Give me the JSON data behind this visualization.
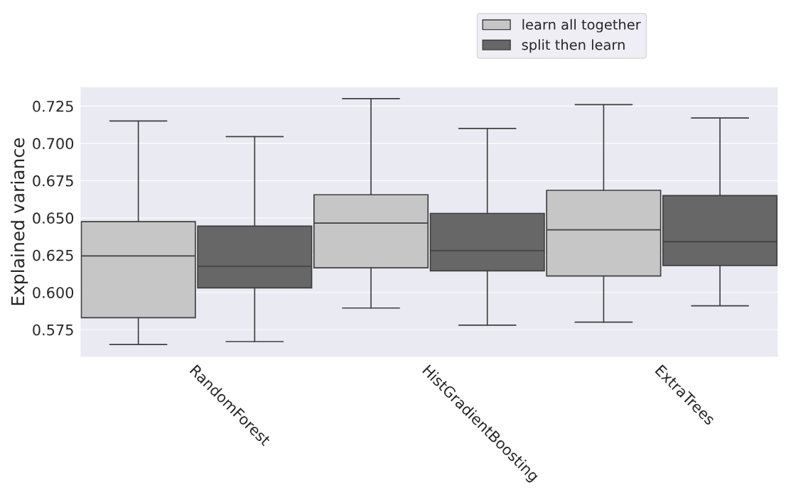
{
  "chart_data": {
    "type": "box",
    "ylabel": "Explained variance",
    "categories": [
      "RandomForest",
      "HistGradientBoosting",
      "ExtraTrees"
    ],
    "series": [
      {
        "name": "learn all together",
        "color": "#c6c6c6",
        "boxes": [
          {
            "low": 0.565,
            "q1": 0.583,
            "median": 0.6245,
            "q3": 0.6475,
            "high": 0.715
          },
          {
            "low": 0.5895,
            "q1": 0.6165,
            "median": 0.6465,
            "q3": 0.6655,
            "high": 0.73
          },
          {
            "low": 0.58,
            "q1": 0.611,
            "median": 0.642,
            "q3": 0.6685,
            "high": 0.726
          }
        ]
      },
      {
        "name": "split then learn",
        "color": "#676767",
        "boxes": [
          {
            "low": 0.567,
            "q1": 0.603,
            "median": 0.6175,
            "q3": 0.6445,
            "high": 0.7045
          },
          {
            "low": 0.578,
            "q1": 0.6145,
            "median": 0.628,
            "q3": 0.653,
            "high": 0.71
          },
          {
            "low": 0.591,
            "q1": 0.618,
            "median": 0.634,
            "q3": 0.665,
            "high": 0.717
          }
        ]
      }
    ],
    "ylim": [
      0.5565,
      0.738
    ],
    "yticks": [
      {
        "value": 0.575,
        "label": "0.575"
      },
      {
        "value": 0.6,
        "label": "0.600"
      },
      {
        "value": 0.625,
        "label": "0.625"
      },
      {
        "value": 0.65,
        "label": "0.650"
      },
      {
        "value": 0.675,
        "label": "0.675"
      },
      {
        "value": 0.7,
        "label": "0.700"
      },
      {
        "value": 0.725,
        "label": "0.725"
      }
    ],
    "grid": "y",
    "legend": "top"
  }
}
